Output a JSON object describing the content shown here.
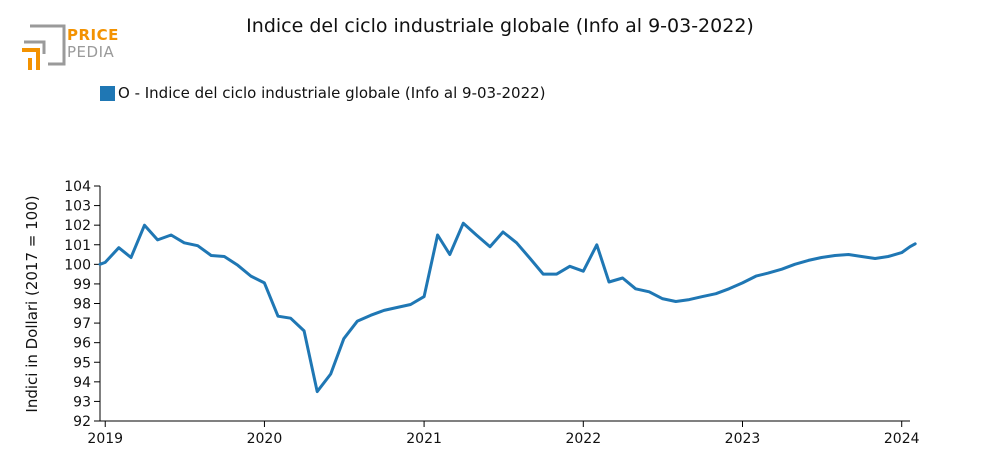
{
  "header": {
    "title": "Indice del ciclo industriale globale (Info al 9-03-2022)",
    "logo": {
      "line1": "PRICE",
      "line2": "PEDIA",
      "colors": {
        "orange": "#f39200",
        "gray": "#9a9a9a"
      }
    }
  },
  "legend": {
    "items": [
      {
        "label": "O - Indice del ciclo industriale globale (Info al 9-03-2022)",
        "color": "#1f77b4"
      }
    ]
  },
  "chart_data": {
    "type": "line",
    "title": "Indice del ciclo industriale globale (Info al 9-03-2022)",
    "ylabel": "Indici in Dollari (2017 = 100)",
    "xlabel": "",
    "ylim": [
      92,
      104
    ],
    "xlim": [
      "2018-12-20",
      "2024-01-20"
    ],
    "yticks": [
      92,
      93,
      94,
      95,
      96,
      97,
      98,
      99,
      100,
      101,
      102,
      103,
      104
    ],
    "xticks": [
      {
        "date": "2019-01-01",
        "label": "2019"
      },
      {
        "date": "2020-01-01",
        "label": "2020"
      },
      {
        "date": "2021-01-01",
        "label": "2021"
      },
      {
        "date": "2022-01-01",
        "label": "2022"
      },
      {
        "date": "2023-01-01",
        "label": "2023"
      },
      {
        "date": "2024-01-01",
        "label": "2024"
      }
    ],
    "grid": false,
    "legend_position": "top-left",
    "series": [
      {
        "name": "O - Indice del ciclo industriale globale (Info al 9-03-2022)",
        "color": "#1f77b4",
        "points": [
          [
            "2018-12-20",
            100.0
          ],
          [
            "2019-01-01",
            100.1
          ],
          [
            "2019-02-01",
            100.85
          ],
          [
            "2019-03-01",
            100.35
          ],
          [
            "2019-04-01",
            102.0
          ],
          [
            "2019-05-01",
            101.25
          ],
          [
            "2019-06-01",
            101.5
          ],
          [
            "2019-07-01",
            101.1
          ],
          [
            "2019-08-01",
            100.95
          ],
          [
            "2019-09-01",
            100.45
          ],
          [
            "2019-10-01",
            100.4
          ],
          [
            "2019-11-01",
            99.95
          ],
          [
            "2019-12-01",
            99.4
          ],
          [
            "2020-01-01",
            99.05
          ],
          [
            "2020-02-01",
            97.35
          ],
          [
            "2020-03-01",
            97.25
          ],
          [
            "2020-04-01",
            96.6
          ],
          [
            "2020-05-01",
            93.5
          ],
          [
            "2020-06-01",
            94.4
          ],
          [
            "2020-07-01",
            96.2
          ],
          [
            "2020-08-01",
            97.1
          ],
          [
            "2020-09-01",
            97.4
          ],
          [
            "2020-10-01",
            97.65
          ],
          [
            "2020-11-01",
            97.8
          ],
          [
            "2020-12-01",
            97.95
          ],
          [
            "2021-01-01",
            98.35
          ],
          [
            "2021-02-01",
            101.5
          ],
          [
            "2021-03-01",
            100.5
          ],
          [
            "2021-04-01",
            102.1
          ],
          [
            "2021-05-01",
            101.5
          ],
          [
            "2021-06-01",
            100.9
          ],
          [
            "2021-07-01",
            101.65
          ],
          [
            "2021-08-01",
            101.1
          ],
          [
            "2021-09-01",
            100.3
          ],
          [
            "2021-10-01",
            99.5
          ],
          [
            "2021-11-01",
            99.5
          ],
          [
            "2021-12-01",
            99.9
          ],
          [
            "2022-01-01",
            99.65
          ],
          [
            "2022-02-01",
            101.0
          ],
          [
            "2022-03-01",
            99.1
          ],
          [
            "2022-04-01",
            99.3
          ],
          [
            "2022-05-01",
            98.75
          ],
          [
            "2022-06-01",
            98.6
          ],
          [
            "2022-07-01",
            98.25
          ],
          [
            "2022-08-01",
            98.1
          ],
          [
            "2022-09-01",
            98.2
          ],
          [
            "2022-10-01",
            98.35
          ],
          [
            "2022-11-01",
            98.5
          ],
          [
            "2022-12-01",
            98.75
          ],
          [
            "2023-01-01",
            99.05
          ],
          [
            "2023-02-01",
            99.4
          ],
          [
            "2023-03-01",
            99.55
          ],
          [
            "2023-04-01",
            99.75
          ],
          [
            "2023-05-01",
            100.0
          ],
          [
            "2023-06-01",
            100.2
          ],
          [
            "2023-07-01",
            100.35
          ],
          [
            "2023-08-01",
            100.45
          ],
          [
            "2023-09-01",
            100.5
          ],
          [
            "2023-10-01",
            100.4
          ],
          [
            "2023-11-01",
            100.3
          ],
          [
            "2023-12-01",
            100.4
          ],
          [
            "2024-01-01",
            100.6
          ],
          [
            "2024-01-20",
            100.9
          ],
          [
            "2024-02-01",
            101.05
          ]
        ]
      }
    ]
  }
}
